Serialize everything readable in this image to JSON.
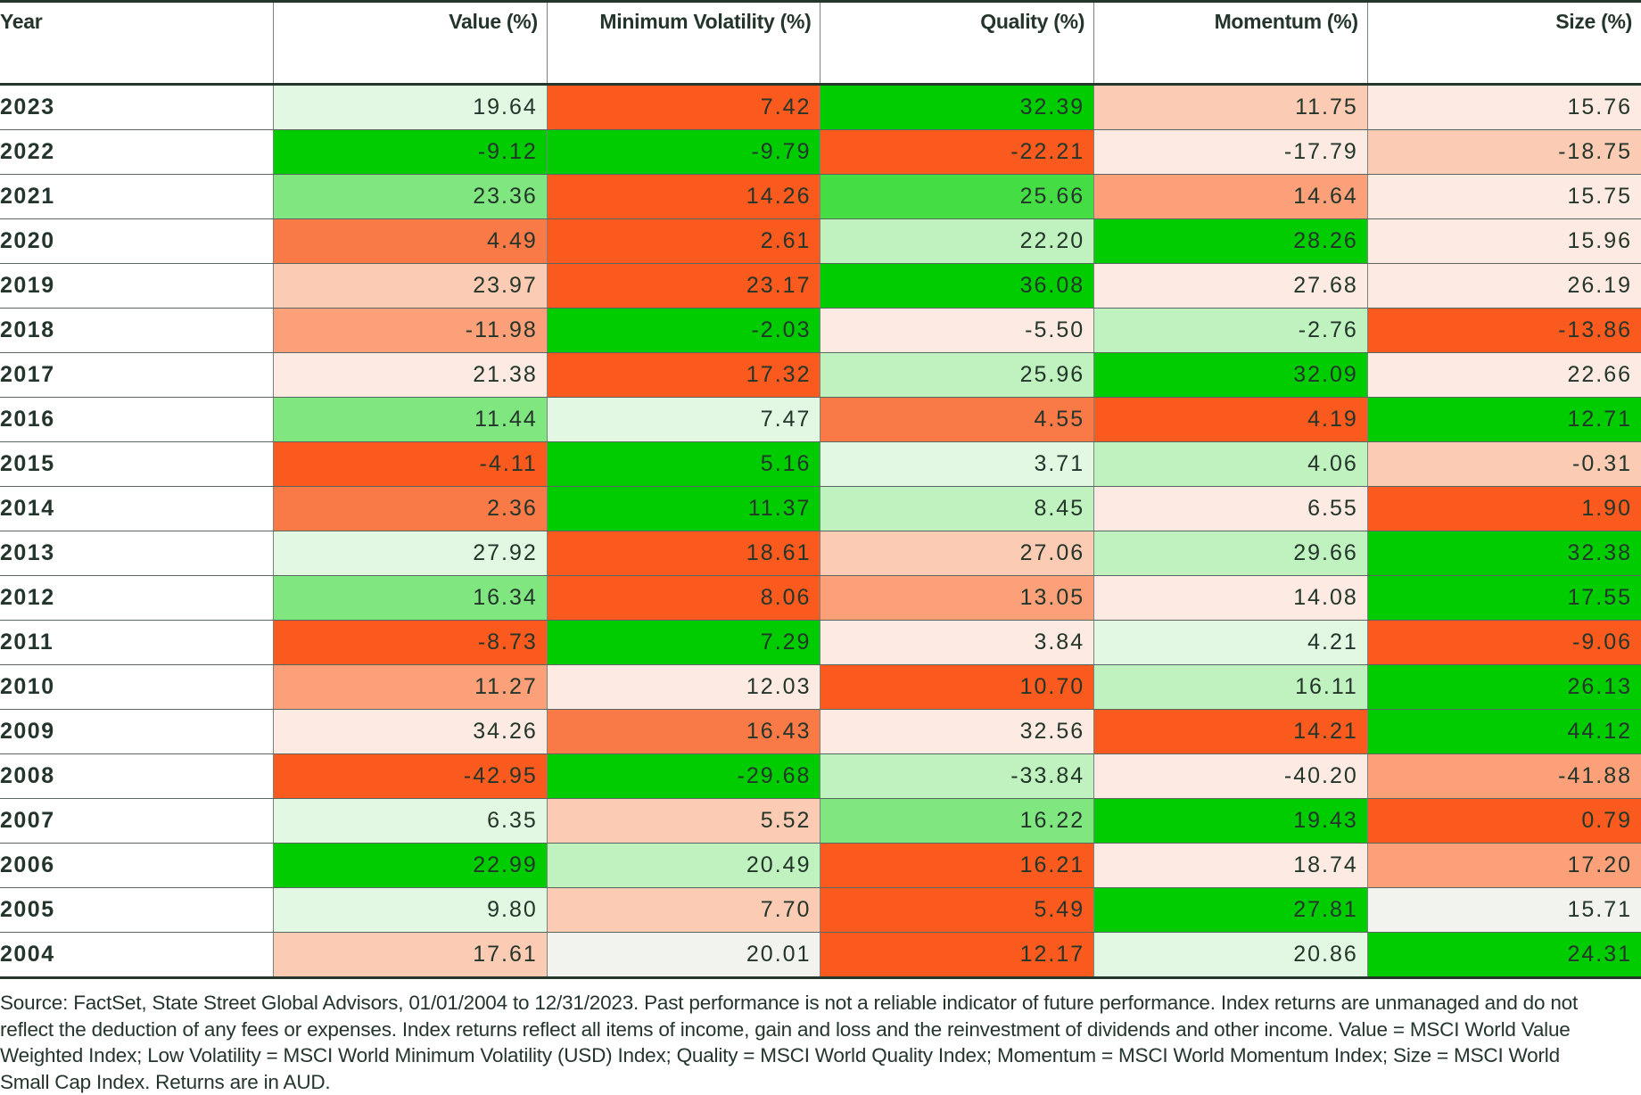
{
  "headers": [
    "Year",
    "Value (%)",
    "Minimum Volatility (%)",
    "Quality (%)",
    "Momentum (%)",
    "Size (%)"
  ],
  "palette": {
    "G5": "#00CC00",
    "G4": "#44DD44",
    "G3": "#80E680",
    "G2": "#BFF2BF",
    "G1": "#E3F8E3",
    "N": "#F2F3EE",
    "R1": "#FDEAE2",
    "R2": "#FCCBB3",
    "R3": "#FBA078",
    "R4": "#F97A46",
    "R5": "#FA5A1E"
  },
  "rows": [
    {
      "year": "2023",
      "values": [
        "19.64",
        "7.42",
        "32.39",
        "11.75",
        "15.76"
      ],
      "colors": [
        "G1",
        "R5",
        "G5",
        "R2",
        "R1"
      ]
    },
    {
      "year": "2022",
      "values": [
        "-9.12",
        "-9.79",
        "-22.21",
        "-17.79",
        "-18.75"
      ],
      "colors": [
        "G5",
        "G5",
        "R5",
        "R1",
        "R2"
      ]
    },
    {
      "year": "2021",
      "values": [
        "23.36",
        "14.26",
        "25.66",
        "14.64",
        "15.75"
      ],
      "colors": [
        "G3",
        "R5",
        "G4",
        "R3",
        "R1"
      ]
    },
    {
      "year": "2020",
      "values": [
        "4.49",
        "2.61",
        "22.20",
        "28.26",
        "15.96"
      ],
      "colors": [
        "R4",
        "R5",
        "G2",
        "G5",
        "R1"
      ]
    },
    {
      "year": "2019",
      "values": [
        "23.97",
        "23.17",
        "36.08",
        "27.68",
        "26.19"
      ],
      "colors": [
        "R2",
        "R5",
        "G5",
        "R1",
        "R1"
      ]
    },
    {
      "year": "2018",
      "values": [
        "-11.98",
        "-2.03",
        "-5.50",
        "-2.76",
        "-13.86"
      ],
      "colors": [
        "R3",
        "G5",
        "R1",
        "G2",
        "R5"
      ]
    },
    {
      "year": "2017",
      "values": [
        "21.38",
        "17.32",
        "25.96",
        "32.09",
        "22.66"
      ],
      "colors": [
        "R1",
        "R5",
        "G2",
        "G5",
        "R1"
      ]
    },
    {
      "year": "2016",
      "values": [
        "11.44",
        "7.47",
        "4.55",
        "4.19",
        "12.71"
      ],
      "colors": [
        "G3",
        "G1",
        "R4",
        "R5",
        "G5"
      ]
    },
    {
      "year": "2015",
      "values": [
        "-4.11",
        "5.16",
        "3.71",
        "4.06",
        "-0.31"
      ],
      "colors": [
        "R5",
        "G5",
        "G1",
        "G2",
        "R2"
      ]
    },
    {
      "year": "2014",
      "values": [
        "2.36",
        "11.37",
        "8.45",
        "6.55",
        "1.90"
      ],
      "colors": [
        "R4",
        "G5",
        "G2",
        "R1",
        "R5"
      ]
    },
    {
      "year": "2013",
      "values": [
        "27.92",
        "18.61",
        "27.06",
        "29.66",
        "32.38"
      ],
      "colors": [
        "G1",
        "R5",
        "R2",
        "G2",
        "G5"
      ]
    },
    {
      "year": "2012",
      "values": [
        "16.34",
        "8.06",
        "13.05",
        "14.08",
        "17.55"
      ],
      "colors": [
        "G3",
        "R5",
        "R3",
        "R1",
        "G5"
      ]
    },
    {
      "year": "2011",
      "values": [
        "-8.73",
        "7.29",
        "3.84",
        "4.21",
        "-9.06"
      ],
      "colors": [
        "R5",
        "G5",
        "R1",
        "G1",
        "R5"
      ]
    },
    {
      "year": "2010",
      "values": [
        "11.27",
        "12.03",
        "10.70",
        "16.11",
        "26.13"
      ],
      "colors": [
        "R3",
        "R1",
        "R5",
        "G2",
        "G5"
      ]
    },
    {
      "year": "2009",
      "values": [
        "34.26",
        "16.43",
        "32.56",
        "14.21",
        "44.12"
      ],
      "colors": [
        "R1",
        "R4",
        "R1",
        "R5",
        "G5"
      ]
    },
    {
      "year": "2008",
      "values": [
        "-42.95",
        "-29.68",
        "-33.84",
        "-40.20",
        "-41.88"
      ],
      "colors": [
        "R5",
        "G5",
        "G2",
        "R1",
        "R3"
      ]
    },
    {
      "year": "2007",
      "values": [
        "6.35",
        "5.52",
        "16.22",
        "19.43",
        "0.79"
      ],
      "colors": [
        "G1",
        "R2",
        "G3",
        "G5",
        "R5"
      ]
    },
    {
      "year": "2006",
      "values": [
        "22.99",
        "20.49",
        "16.21",
        "18.74",
        "17.20"
      ],
      "colors": [
        "G5",
        "G2",
        "R5",
        "R1",
        "R3"
      ]
    },
    {
      "year": "2005",
      "values": [
        "9.80",
        "7.70",
        "5.49",
        "27.81",
        "15.71"
      ],
      "colors": [
        "G1",
        "R2",
        "R5",
        "G5",
        "N"
      ]
    },
    {
      "year": "2004",
      "values": [
        "17.61",
        "20.01",
        "12.17",
        "20.86",
        "24.31"
      ],
      "colors": [
        "R2",
        "N",
        "R5",
        "G1",
        "G5"
      ]
    }
  ],
  "footnote": "Source: FactSet, State Street Global Advisors, 01/01/2004 to 12/31/2023. Past performance is not a reliable indicator of future performance. Index returns are unmanaged and do not reflect the deduction of any fees or expenses. Index returns reflect all items of income, gain and loss and the reinvestment of dividends and other income. Value = MSCI World Value Weighted Index; Low Volatility = MSCI World Minimum Volatility (USD) Index; Quality = MSCI World Quality Index; Momentum = MSCI World Momentum Index; Size = MSCI World Small Cap Index. Returns are in AUD."
}
